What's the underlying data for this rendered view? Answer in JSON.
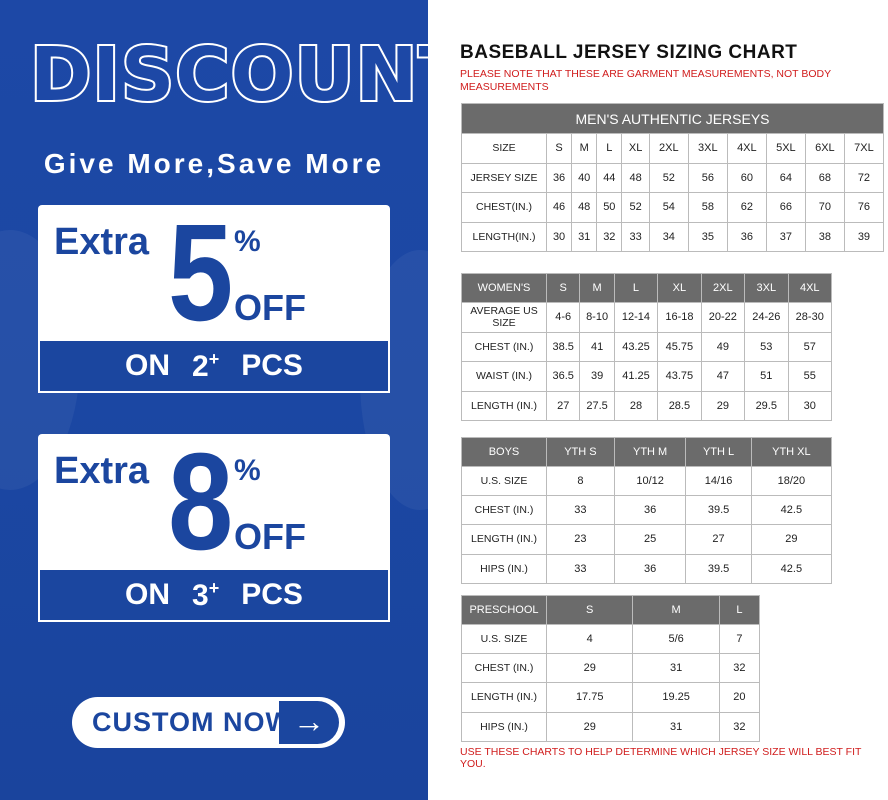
{
  "promo": {
    "headline": "DISCOUNT",
    "tagline": "Give More,Save More",
    "offers": [
      {
        "extra": "Extra",
        "amount": "5",
        "percent": "%",
        "off": "OFF",
        "on": "ON",
        "qty": "2",
        "plus": "+",
        "pcs": "PCS"
      },
      {
        "extra": "Extra",
        "amount": "8",
        "percent": "%",
        "off": "OFF",
        "on": "ON",
        "qty": "3",
        "plus": "+",
        "pcs": "PCS"
      }
    ],
    "cta": "CUSTOM NOW",
    "cta_icon": "arrow-right-icon",
    "colors": {
      "brand_blue": "#1b469f",
      "white": "#ffffff"
    }
  },
  "chart": {
    "title": "BASEBALL JERSEY SIZING CHART",
    "note": "PLEASE NOTE THAT THESE ARE GARMENT MEASUREMENTS, NOT BODY MEASUREMENTS",
    "footer": "USE THESE CHARTS TO HELP DETERMINE WHICH JERSEY SIZE WILL BEST FIT YOU.",
    "colors": {
      "note_red": "#d01c1c",
      "header_gray": "#6b6b6b"
    },
    "men": {
      "title": "MEN'S AUTHENTIC JERSEYS",
      "rows": [
        [
          "SIZE",
          "S",
          "M",
          "L",
          "XL",
          "2XL",
          "3XL",
          "4XL",
          "5XL",
          "6XL",
          "7XL"
        ],
        [
          "JERSEY SIZE",
          "36",
          "40",
          "44",
          "48",
          "52",
          "56",
          "60",
          "64",
          "68",
          "72"
        ],
        [
          "CHEST(IN.)",
          "46",
          "48",
          "50",
          "52",
          "54",
          "58",
          "62",
          "66",
          "70",
          "76"
        ],
        [
          "LENGTH(IN.)",
          "30",
          "31",
          "32",
          "33",
          "34",
          "35",
          "36",
          "37",
          "38",
          "39"
        ]
      ]
    },
    "women": {
      "header": [
        "WOMEN'S",
        "S",
        "M",
        "L",
        "XL",
        "2XL",
        "3XL",
        "4XL"
      ],
      "rows": [
        [
          "AVERAGE US SIZE",
          "4-6",
          "8-10",
          "12-14",
          "16-18",
          "20-22",
          "24-26",
          "28-30"
        ],
        [
          "CHEST (IN.)",
          "38.5",
          "41",
          "43.25",
          "45.75",
          "49",
          "53",
          "57"
        ],
        [
          "WAIST (IN.)",
          "36.5",
          "39",
          "41.25",
          "43.75",
          "47",
          "51",
          "55"
        ],
        [
          "LENGTH (IN.)",
          "27",
          "27.5",
          "28",
          "28.5",
          "29",
          "29.5",
          "30"
        ]
      ]
    },
    "boys": {
      "header": [
        "BOYS",
        "YTH S",
        "YTH M",
        "YTH L",
        "YTH XL"
      ],
      "rows": [
        [
          "U.S. SIZE",
          "8",
          "10/12",
          "14/16",
          "18/20"
        ],
        [
          "CHEST (IN.)",
          "33",
          "36",
          "39.5",
          "42.5"
        ],
        [
          "LENGTH (IN.)",
          "23",
          "25",
          "27",
          "29"
        ],
        [
          "HIPS (IN.)",
          "33",
          "36",
          "39.5",
          "42.5"
        ]
      ]
    },
    "preschool": {
      "header": [
        "PRESCHOOL",
        "S",
        "M",
        "L"
      ],
      "rows": [
        [
          "U.S. SIZE",
          "4",
          "5/6",
          "7"
        ],
        [
          "CHEST (IN.)",
          "29",
          "31",
          "32"
        ],
        [
          "LENGTH (IN.)",
          "17.75",
          "19.25",
          "20"
        ],
        [
          "HIPS (IN.)",
          "29",
          "31",
          "32"
        ]
      ]
    }
  }
}
